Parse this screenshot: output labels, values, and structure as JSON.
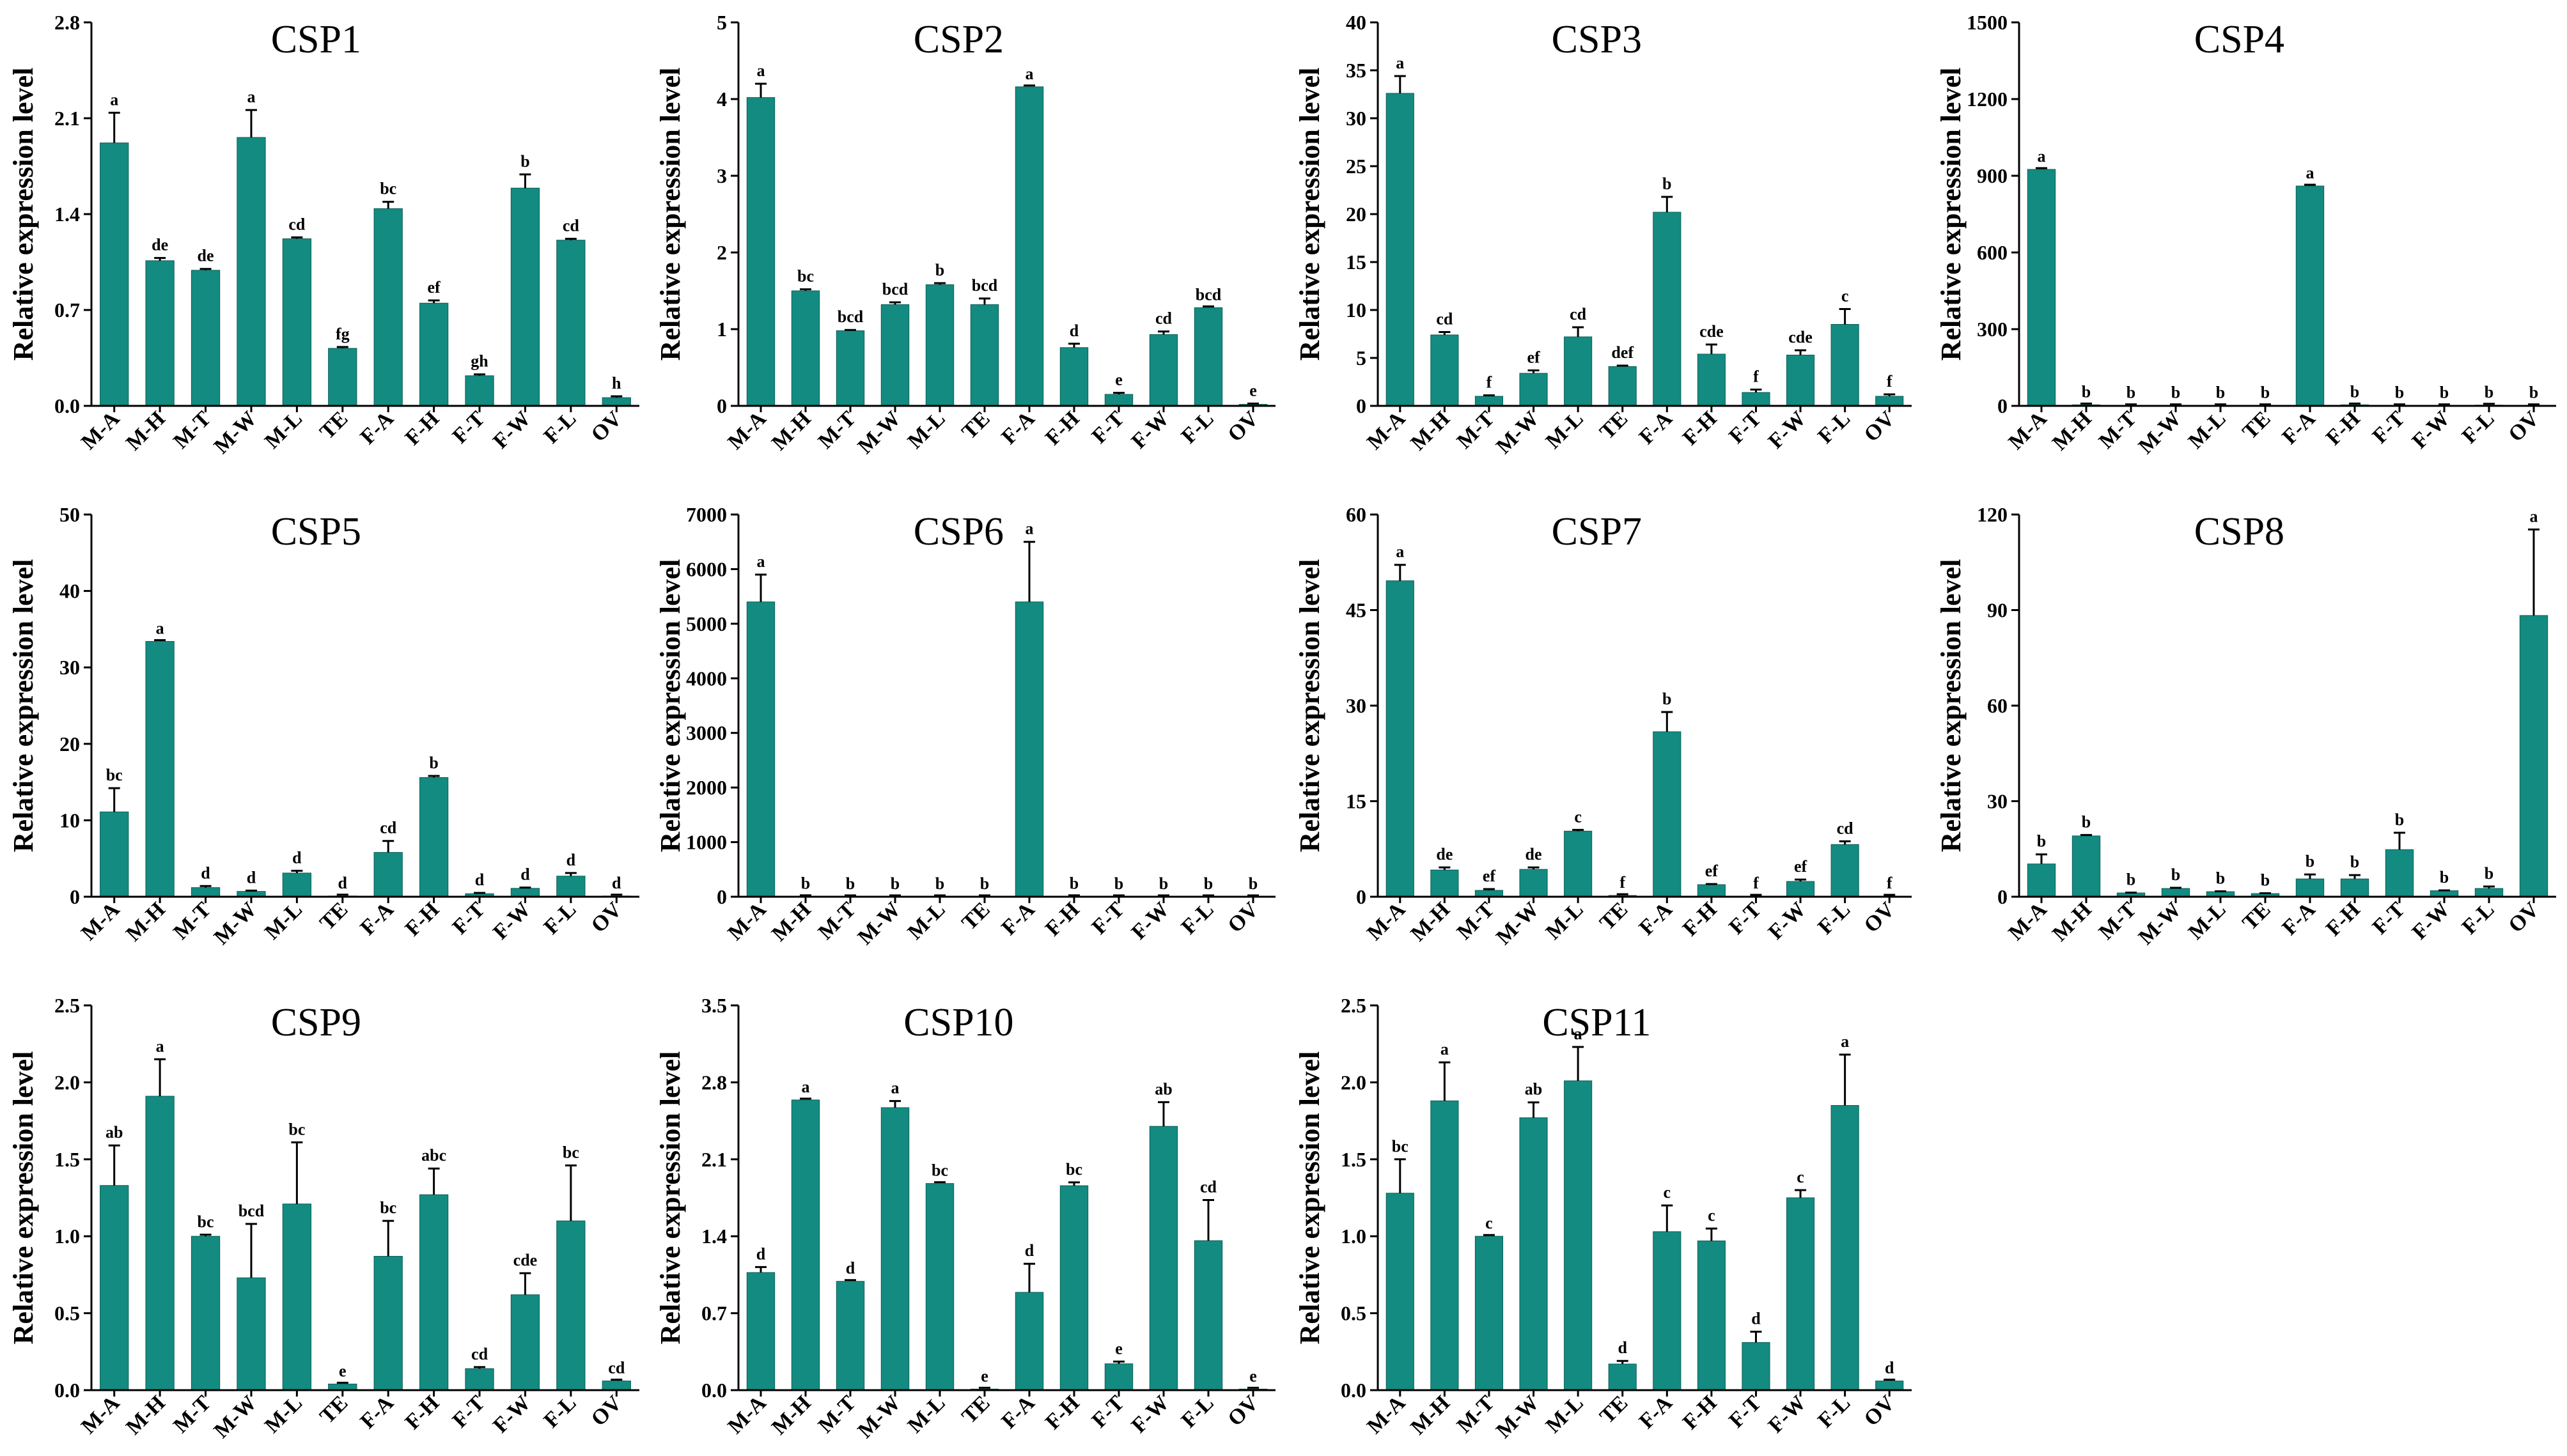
{
  "colors": {
    "bar": "#138b80",
    "axis": "#000000"
  },
  "chart_data": [
    {
      "type": "bar",
      "title": "CSP1",
      "ylabel": "Relative expression level",
      "ylim": [
        0,
        2.8
      ],
      "ticks": [
        "0.0",
        "0.7",
        "1.4",
        "2.1",
        "2.8"
      ],
      "categories": [
        "M-A",
        "M-H",
        "M-T",
        "M-W",
        "M-L",
        "TE",
        "F-A",
        "F-H",
        "F-T",
        "F-W",
        "F-L",
        "OV"
      ],
      "values": [
        1.92,
        1.06,
        0.99,
        1.96,
        1.22,
        0.42,
        1.44,
        0.75,
        0.22,
        1.59,
        1.21,
        0.06
      ],
      "errors": [
        0.22,
        0.02,
        0.01,
        0.2,
        0.01,
        0.01,
        0.05,
        0.02,
        0.01,
        0.1,
        0.01,
        0.01
      ],
      "labels": [
        "a",
        "de",
        "de",
        "a",
        "cd",
        "fg",
        "bc",
        "ef",
        "gh",
        "b",
        "cd",
        "h"
      ]
    },
    {
      "type": "bar",
      "title": "CSP2",
      "ylabel": "Relative expression level",
      "ylim": [
        0,
        5
      ],
      "ticks": [
        "0",
        "1",
        "2",
        "3",
        "4",
        "5"
      ],
      "categories": [
        "M-A",
        "M-H",
        "M-T",
        "M-W",
        "M-L",
        "TE",
        "F-A",
        "F-H",
        "F-T",
        "F-W",
        "F-L",
        "OV"
      ],
      "values": [
        4.02,
        1.5,
        0.98,
        1.32,
        1.58,
        1.32,
        4.16,
        0.76,
        0.15,
        0.93,
        1.28,
        0.02
      ],
      "errors": [
        0.18,
        0.02,
        0.01,
        0.03,
        0.02,
        0.08,
        0.0,
        0.05,
        0.02,
        0.04,
        0.0,
        0.01
      ],
      "labels": [
        "a",
        "bc",
        "bcd",
        "bcd",
        "b",
        "bcd",
        "a",
        "d",
        "e",
        "cd",
        "bcd",
        "e"
      ]
    },
    {
      "type": "bar",
      "title": "CSP3",
      "ylabel": "Relative expression level",
      "ylim": [
        0,
        40
      ],
      "ticks": [
        "0",
        "5",
        "10",
        "15",
        "20",
        "25",
        "30",
        "35",
        "40"
      ],
      "categories": [
        "M-A",
        "M-H",
        "M-T",
        "M-W",
        "M-L",
        "TE",
        "F-A",
        "F-H",
        "F-T",
        "F-W",
        "F-L",
        "OV"
      ],
      "values": [
        32.6,
        7.4,
        1.0,
        3.4,
        7.2,
        4.1,
        20.2,
        5.4,
        1.4,
        5.3,
        8.5,
        1.0
      ],
      "errors": [
        1.8,
        0.3,
        0.1,
        0.3,
        1.0,
        0.1,
        1.6,
        1.0,
        0.3,
        0.5,
        1.6,
        0.2
      ],
      "labels": [
        "a",
        "cd",
        "f",
        "ef",
        "cd",
        "def",
        "b",
        "cde",
        "f",
        "cde",
        "c",
        "f"
      ]
    },
    {
      "type": "bar",
      "title": "CSP4",
      "ylabel": "Relative expression level",
      "ylim": [
        0,
        1500
      ],
      "ticks": [
        "0",
        "300",
        "600",
        "900",
        "1200",
        "1500"
      ],
      "categories": [
        "M-A",
        "M-H",
        "M-T",
        "M-W",
        "M-L",
        "TE",
        "F-A",
        "F-H",
        "F-T",
        "F-W",
        "F-L",
        "OV"
      ],
      "values": [
        925,
        4,
        1,
        1,
        1,
        1,
        860,
        4,
        1,
        1,
        3,
        1
      ],
      "errors": [
        0,
        0,
        0,
        0,
        0,
        0,
        0,
        0,
        0,
        0,
        0,
        0
      ],
      "labels": [
        "a",
        "b",
        "b",
        "b",
        "b",
        "b",
        "a",
        "b",
        "b",
        "b",
        "b",
        "b"
      ]
    },
    {
      "type": "bar",
      "title": "CSP5",
      "ylabel": "Relative expression level",
      "ylim": [
        0,
        50
      ],
      "ticks": [
        "0",
        "10",
        "20",
        "30",
        "40",
        "50"
      ],
      "categories": [
        "M-A",
        "M-H",
        "M-T",
        "M-W",
        "M-L",
        "TE",
        "F-A",
        "F-H",
        "F-T",
        "F-W",
        "F-L",
        "OV"
      ],
      "values": [
        11.1,
        33.4,
        1.2,
        0.7,
        3.1,
        0.1,
        5.8,
        15.6,
        0.4,
        1.1,
        2.7,
        0.1
      ],
      "errors": [
        3.1,
        0.0,
        0.2,
        0.1,
        0.3,
        0.0,
        1.5,
        0.2,
        0.1,
        0.1,
        0.4,
        0.0
      ],
      "labels": [
        "bc",
        "a",
        "d",
        "d",
        "d",
        "d",
        "cd",
        "b",
        "d",
        "d",
        "d",
        "d"
      ]
    },
    {
      "type": "bar",
      "title": "CSP6",
      "ylabel": "Relative expression level",
      "ylim": [
        0,
        7000
      ],
      "ticks": [
        "0",
        "1000",
        "2000",
        "3000",
        "4000",
        "5000",
        "6000",
        "7000"
      ],
      "categories": [
        "M-A",
        "M-H",
        "M-T",
        "M-W",
        "M-L",
        "TE",
        "F-A",
        "F-H",
        "F-T",
        "F-W",
        "F-L",
        "OV"
      ],
      "values": [
        5400,
        3,
        2,
        2,
        2,
        2,
        5400,
        3,
        2,
        2,
        2,
        2
      ],
      "errors": [
        500,
        0,
        0,
        0,
        0,
        0,
        1100,
        0,
        0,
        0,
        0,
        0
      ],
      "labels": [
        "a",
        "b",
        "b",
        "b",
        "b",
        "b",
        "a",
        "b",
        "b",
        "b",
        "b",
        "b"
      ]
    },
    {
      "type": "bar",
      "title": "CSP7",
      "ylabel": "Relative expression level",
      "ylim": [
        0,
        60
      ],
      "ticks": [
        "0",
        "15",
        "30",
        "45",
        "60"
      ],
      "categories": [
        "M-A",
        "M-H",
        "M-T",
        "M-W",
        "M-L",
        "TE",
        "F-A",
        "F-H",
        "F-T",
        "F-W",
        "F-L",
        "OV"
      ],
      "values": [
        49.6,
        4.2,
        1.0,
        4.3,
        10.3,
        0.2,
        25.9,
        1.9,
        0.1,
        2.4,
        8.2,
        0.1
      ],
      "errors": [
        2.5,
        0.4,
        0.2,
        0.3,
        0.2,
        0.0,
        3.1,
        0.1,
        0.0,
        0.3,
        0.5,
        0.0
      ],
      "labels": [
        "a",
        "de",
        "ef",
        "de",
        "c",
        "f",
        "b",
        "ef",
        "f",
        "ef",
        "cd",
        "f"
      ]
    },
    {
      "type": "bar",
      "title": "CSP8",
      "ylabel": "Relative expression level",
      "ylim": [
        0,
        120
      ],
      "ticks": [
        "0",
        "30",
        "60",
        "90",
        "120"
      ],
      "categories": [
        "M-A",
        "M-H",
        "M-T",
        "M-W",
        "M-L",
        "TE",
        "F-A",
        "F-H",
        "F-T",
        "F-W",
        "F-L",
        "OV"
      ],
      "values": [
        10.3,
        19.1,
        1.2,
        2.6,
        1.6,
        1.0,
        5.6,
        5.6,
        14.8,
        1.9,
        2.6,
        88.3
      ],
      "errors": [
        3.0,
        0.3,
        0.1,
        0.2,
        0.1,
        0.1,
        1.4,
        1.2,
        5.3,
        0.1,
        0.6,
        27.0
      ],
      "labels": [
        "b",
        "b",
        "b",
        "b",
        "b",
        "b",
        "b",
        "b",
        "b",
        "b",
        "b",
        "a"
      ]
    },
    {
      "type": "bar",
      "title": "CSP9",
      "ylabel": "Relative expression level",
      "ylim": [
        0,
        2.5
      ],
      "ticks": [
        "0.0",
        "0.5",
        "1.0",
        "1.5",
        "2.0",
        "2.5"
      ],
      "categories": [
        "M-A",
        "M-H",
        "M-T",
        "M-W",
        "M-L",
        "TE",
        "F-A",
        "F-H",
        "F-T",
        "F-W",
        "F-L",
        "OV"
      ],
      "values": [
        1.33,
        1.91,
        1.0,
        0.73,
        1.21,
        0.04,
        0.87,
        1.27,
        0.14,
        0.62,
        1.1,
        0.06
      ],
      "errors": [
        0.26,
        0.24,
        0.01,
        0.35,
        0.4,
        0.0,
        0.23,
        0.17,
        0.01,
        0.14,
        0.36,
        0.0
      ],
      "labels": [
        "ab",
        "a",
        "bc",
        "bcd",
        "bc",
        "e",
        "bc",
        "abc",
        "cd",
        "cde",
        "bc",
        "cd"
      ]
    },
    {
      "type": "bar",
      "title": "CSP10",
      "ylabel": "Relative expression level",
      "ylim": [
        0,
        3.5
      ],
      "ticks": [
        "0.0",
        "0.7",
        "1.4",
        "2.1",
        "2.8",
        "3.5"
      ],
      "categories": [
        "M-A",
        "M-H",
        "M-T",
        "M-W",
        "M-L",
        "TE",
        "F-A",
        "F-H",
        "F-T",
        "F-W",
        "F-L",
        "OV"
      ],
      "values": [
        1.07,
        2.64,
        0.99,
        2.57,
        1.88,
        0.01,
        0.89,
        1.86,
        0.24,
        2.4,
        1.36,
        0.01
      ],
      "errors": [
        0.05,
        0.0,
        0.0,
        0.06,
        0.0,
        0.0,
        0.26,
        0.03,
        0.02,
        0.22,
        0.37,
        0.0
      ],
      "labels": [
        "d",
        "a",
        "d",
        "a",
        "bc",
        "e",
        "d",
        "bc",
        "e",
        "ab",
        "cd",
        "e"
      ]
    },
    {
      "type": "bar",
      "title": "CSP11",
      "ylabel": "Relative expression level",
      "ylim": [
        0,
        2.5
      ],
      "ticks": [
        "0.0",
        "0.5",
        "1.0",
        "1.5",
        "2.0",
        "2.5"
      ],
      "categories": [
        "M-A",
        "M-H",
        "M-T",
        "M-W",
        "M-L",
        "TE",
        "F-A",
        "F-H",
        "F-T",
        "F-W",
        "F-L",
        "OV"
      ],
      "values": [
        1.28,
        1.88,
        1.0,
        1.77,
        2.01,
        0.17,
        1.03,
        0.97,
        0.31,
        1.25,
        1.85,
        0.06
      ],
      "errors": [
        0.22,
        0.25,
        0.0,
        0.1,
        0.22,
        0.02,
        0.17,
        0.08,
        0.07,
        0.05,
        0.33,
        0.0
      ],
      "labels": [
        "bc",
        "a",
        "c",
        "ab",
        "a",
        "d",
        "c",
        "c",
        "d",
        "c",
        "a",
        "d"
      ]
    }
  ]
}
